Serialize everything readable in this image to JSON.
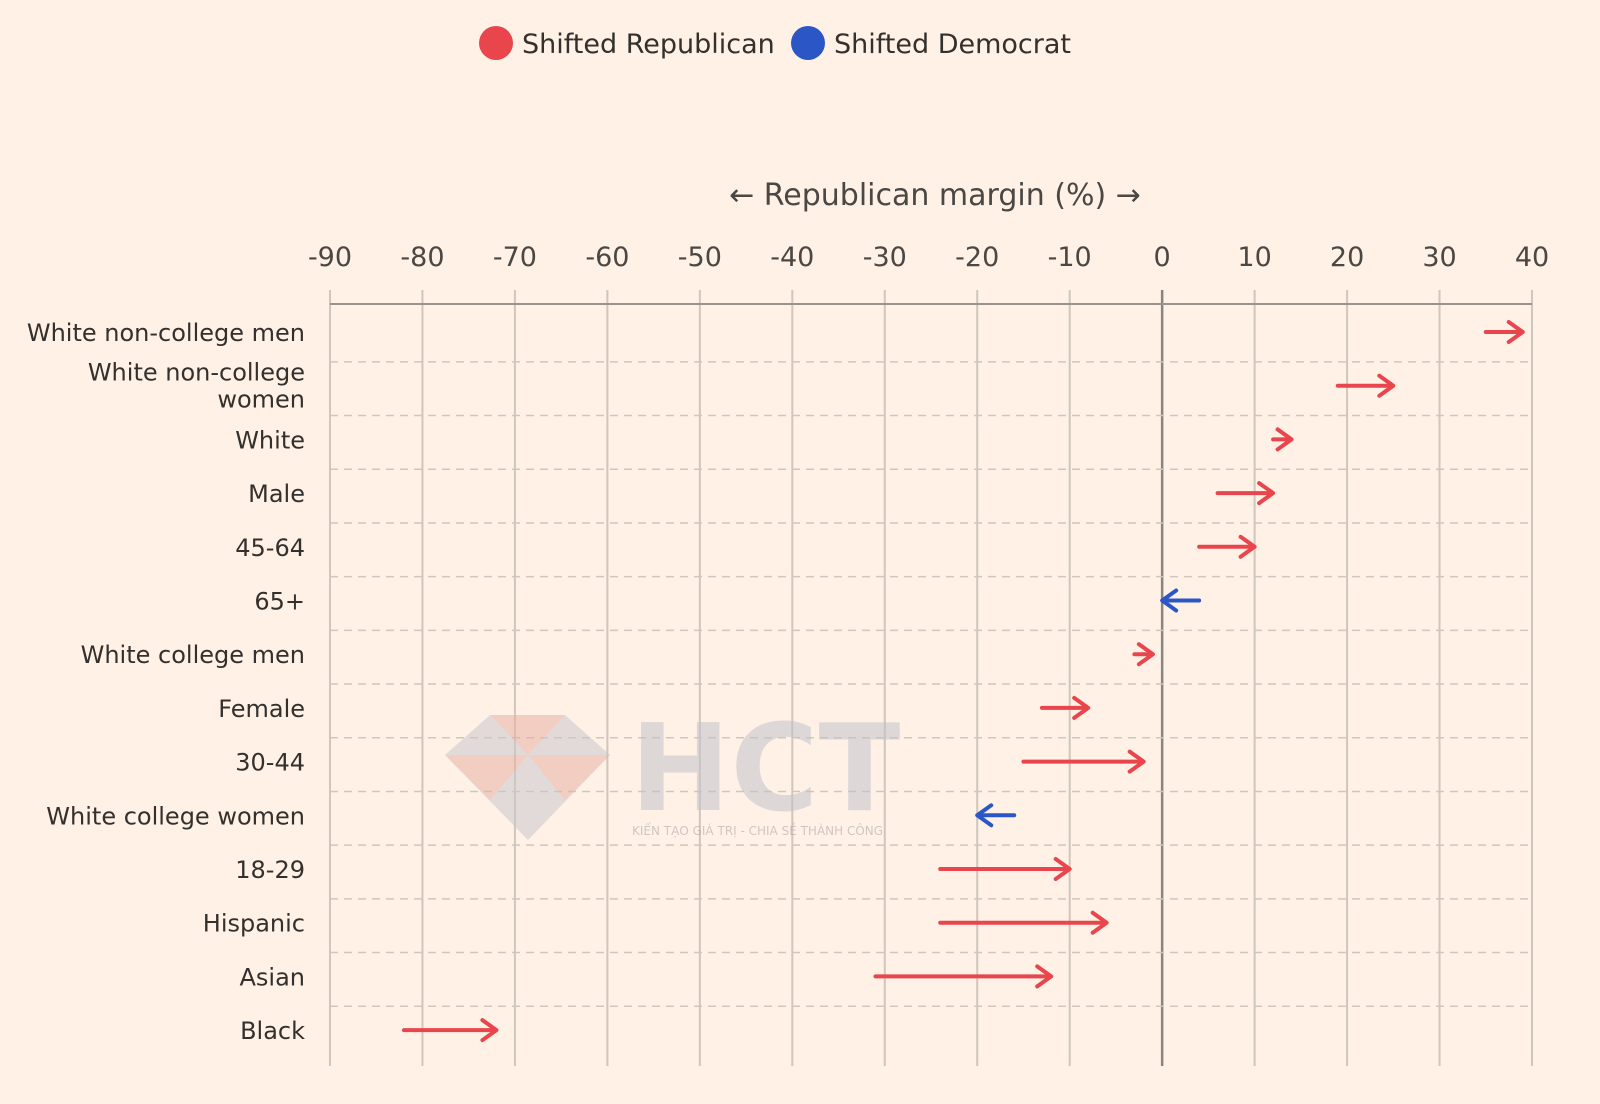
{
  "chart_data": {
    "type": "arrow",
    "title": "",
    "xlabel": "← Republican margin (%) →",
    "ylabel": "",
    "xlim": [
      -90,
      40
    ],
    "x_ticks": [
      -90,
      -80,
      -70,
      -60,
      -50,
      -40,
      -30,
      -20,
      -10,
      0,
      10,
      20,
      30,
      40
    ],
    "grid": true,
    "legend_position": "top",
    "legend": [
      {
        "key": "republican",
        "label": "Shifted Republican",
        "color": "#e8454c"
      },
      {
        "key": "democrat",
        "label": "Shifted Democrat",
        "color": "#2a56c6"
      }
    ],
    "series": [
      {
        "category": [
          "White non-college men"
        ],
        "from": 35,
        "to": 39,
        "shift": "republican"
      },
      {
        "category": [
          "White non-college",
          "women"
        ],
        "from": 19,
        "to": 25,
        "shift": "republican"
      },
      {
        "category": [
          "White"
        ],
        "from": 12,
        "to": 14,
        "shift": "republican"
      },
      {
        "category": [
          "Male"
        ],
        "from": 6,
        "to": 12,
        "shift": "republican"
      },
      {
        "category": [
          "45-64"
        ],
        "from": 4,
        "to": 10,
        "shift": "republican"
      },
      {
        "category": [
          "65+"
        ],
        "from": 4,
        "to": 0,
        "shift": "democrat"
      },
      {
        "category": [
          "White college men"
        ],
        "from": -3,
        "to": -1,
        "shift": "republican"
      },
      {
        "category": [
          "Female"
        ],
        "from": -13,
        "to": -8,
        "shift": "republican"
      },
      {
        "category": [
          "30-44"
        ],
        "from": -15,
        "to": -2,
        "shift": "republican"
      },
      {
        "category": [
          "White college women"
        ],
        "from": -16,
        "to": -20,
        "shift": "democrat"
      },
      {
        "category": [
          "18-29"
        ],
        "from": -24,
        "to": -10,
        "shift": "republican"
      },
      {
        "category": [
          "Hispanic"
        ],
        "from": -24,
        "to": -6,
        "shift": "republican"
      },
      {
        "category": [
          "Asian"
        ],
        "from": -31,
        "to": -12,
        "shift": "republican"
      },
      {
        "category": [
          "Black"
        ],
        "from": -82,
        "to": -72,
        "shift": "republican"
      }
    ]
  },
  "watermark": {
    "brand": "HCT",
    "tagline": "KIẾN TẠO GIÁ TRỊ - CHIA SẺ THÀNH CÔNG"
  },
  "colors": {
    "background": "#fff1e5",
    "grid": "#cfc6bc",
    "axis": "#9a928c",
    "zero_line": "#8a8480"
  }
}
